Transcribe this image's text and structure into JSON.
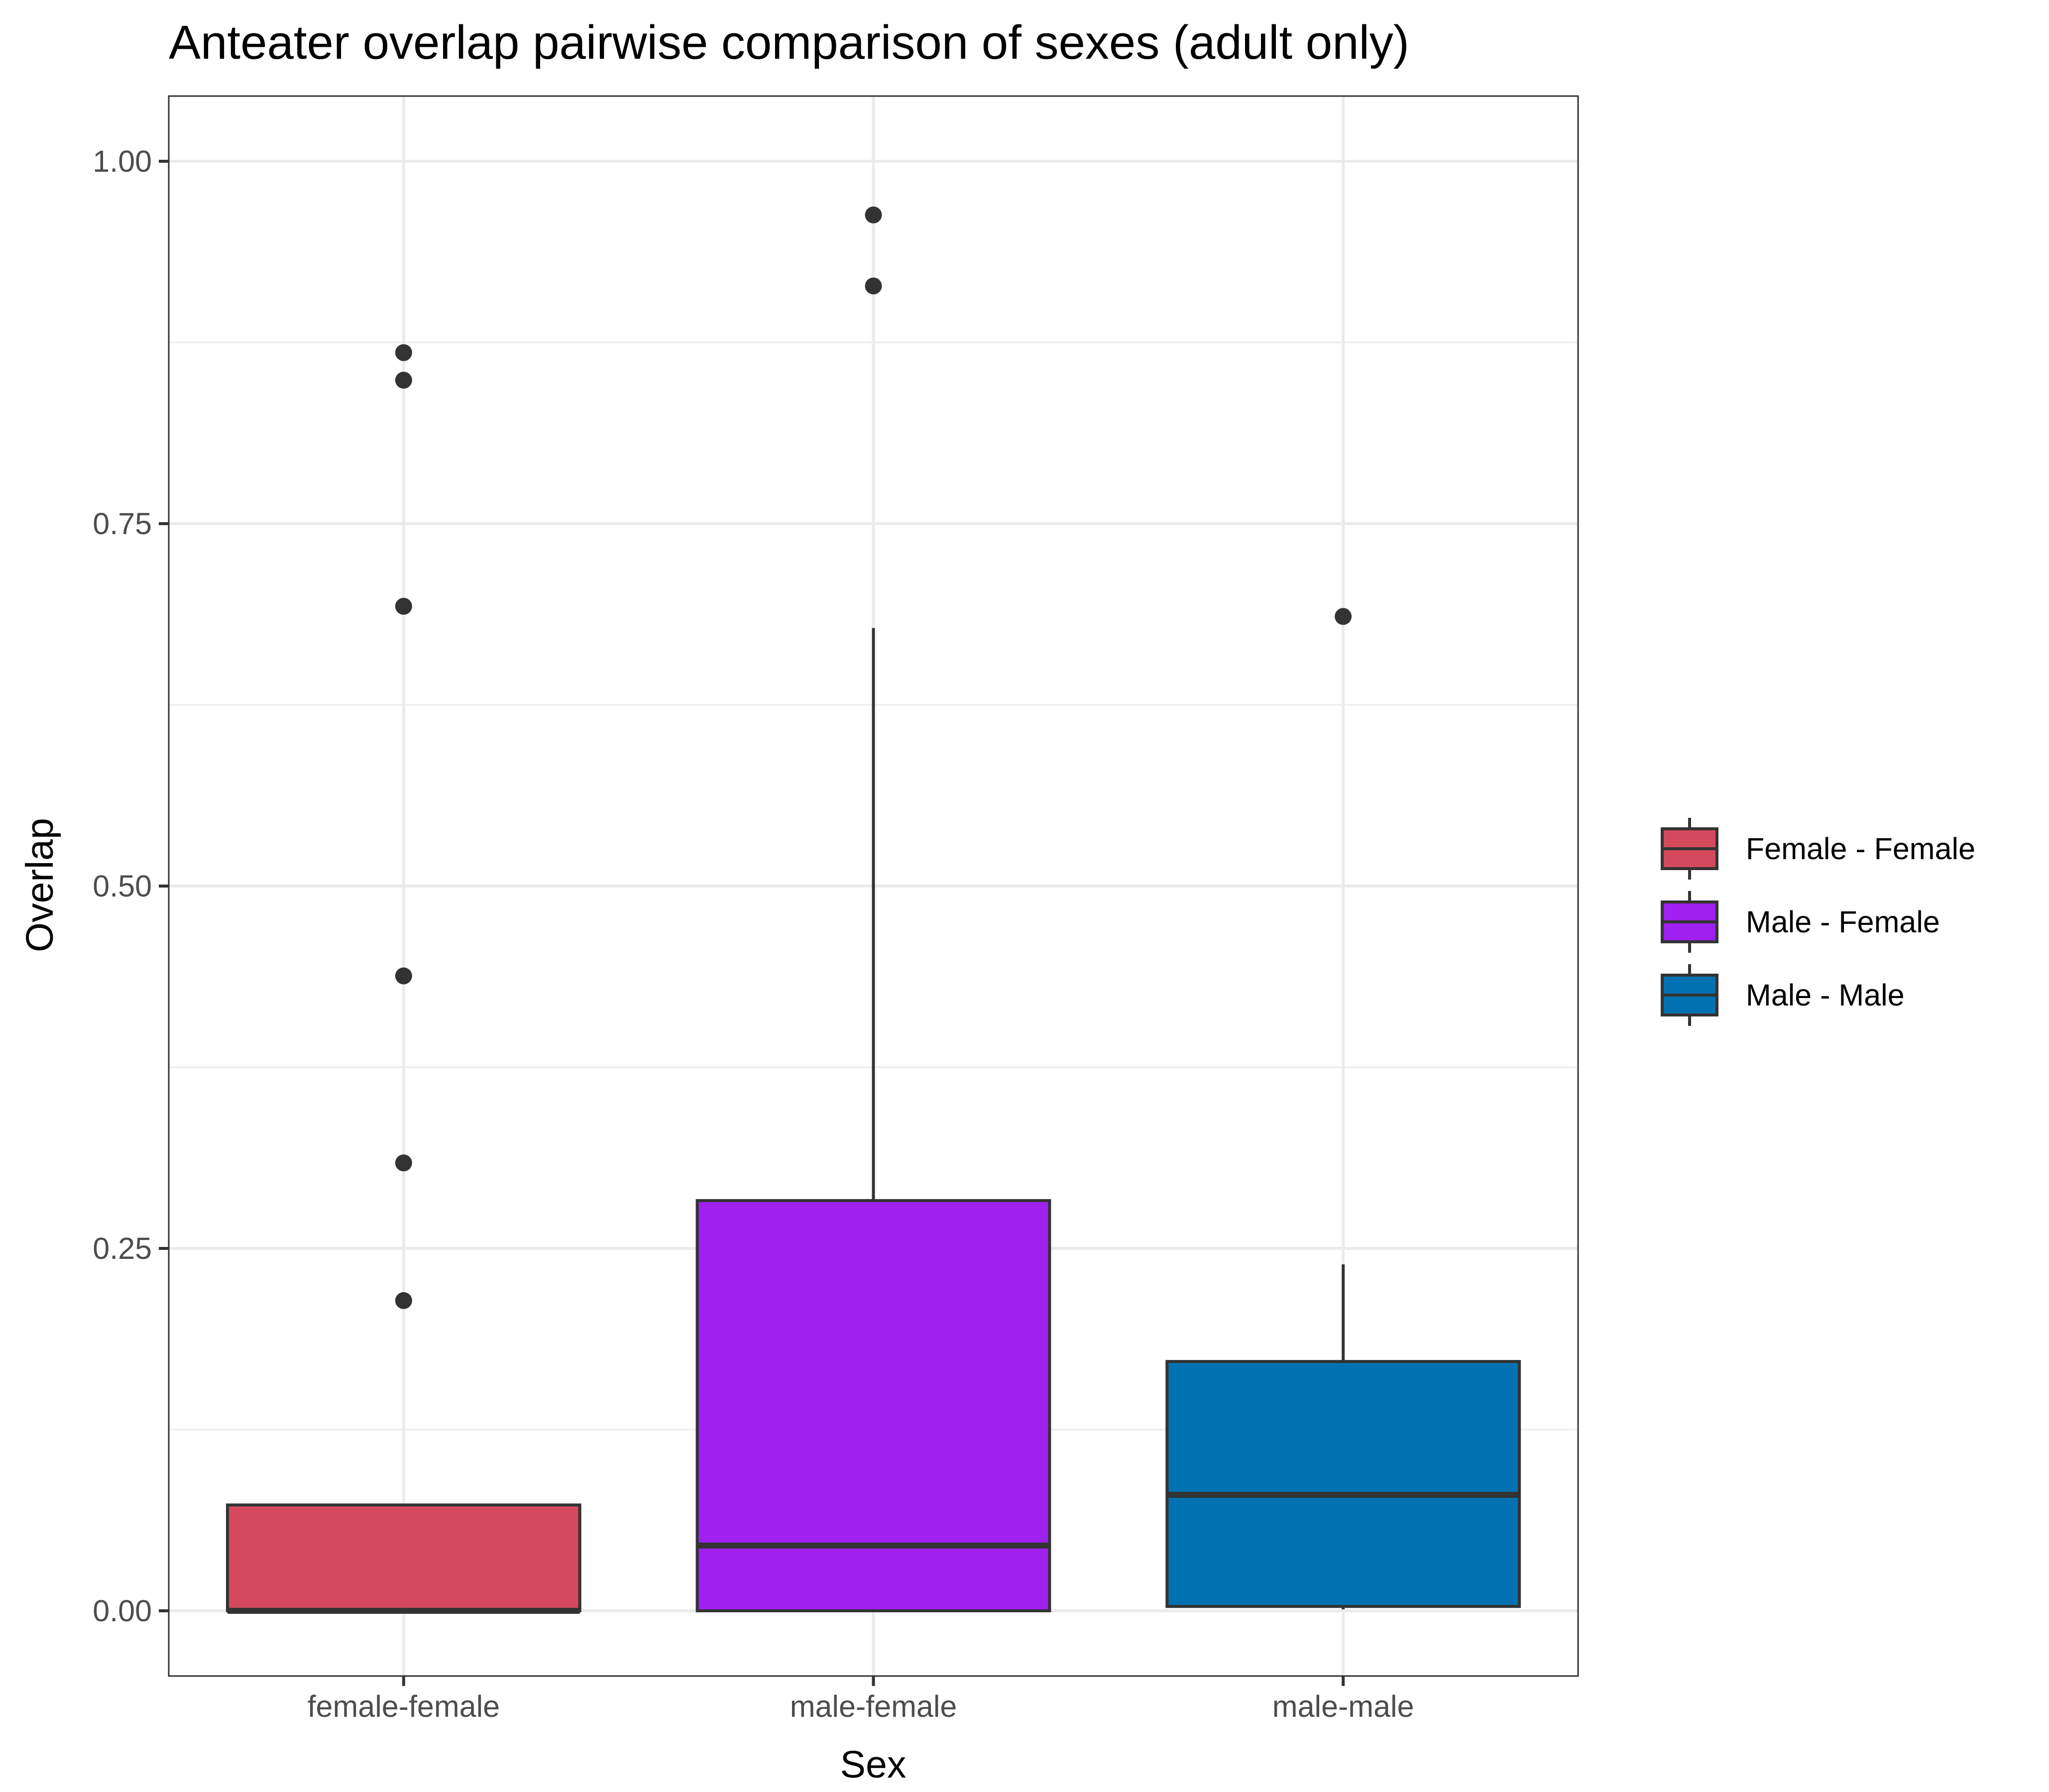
{
  "chart_data": {
    "type": "box",
    "title": "Anteater overlap pairwise comparison of sexes (adult only)",
    "xlabel": "Sex",
    "ylabel": "Overlap",
    "ylim": [
      -0.045,
      1.045
    ],
    "yticks": [
      0.0,
      0.25,
      0.5,
      0.75,
      1.0
    ],
    "ytick_labels": [
      "0.00",
      "0.25",
      "0.50",
      "0.75",
      "1.00"
    ],
    "grid": true,
    "legend_position": "right",
    "categories": [
      "female-female",
      "male-female",
      "male-male"
    ],
    "series": [
      {
        "name": "Female - Female",
        "category": "female-female",
        "color": "#D44A5C",
        "min": 0.0,
        "q1": 0.0,
        "median": 0.0,
        "q3": 0.073,
        "max": 0.073,
        "outliers": [
          0.214,
          0.309,
          0.438,
          0.693,
          0.849,
          0.868
        ]
      },
      {
        "name": "Male - Female",
        "category": "male-female",
        "color": "#A020F0",
        "min": 0.0,
        "q1": 0.0,
        "median": 0.045,
        "q3": 0.283,
        "max": 0.678,
        "outliers": [
          0.914,
          0.963
        ]
      },
      {
        "name": "Male - Male",
        "category": "male-male",
        "color": "#0072B2",
        "min": 0.001,
        "q1": 0.003,
        "median": 0.08,
        "q3": 0.172,
        "max": 0.239,
        "outliers": [
          0.686
        ]
      }
    ]
  }
}
